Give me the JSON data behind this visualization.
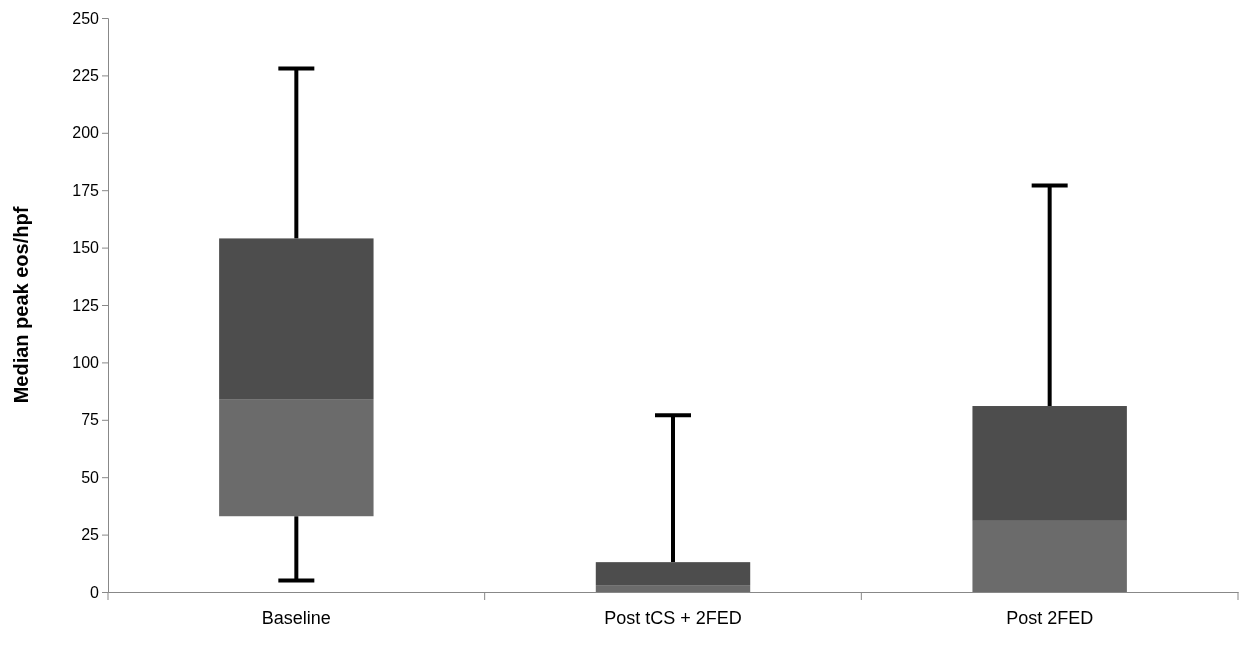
{
  "chart_data": {
    "type": "box",
    "ylabel": "Median peak eos/hpf",
    "categories": [
      "Baseline",
      "Post tCS + 2FED",
      "Post 2FED"
    ],
    "series": [
      {
        "color": "#6b6b6b",
        "boxes": [
          {
            "low": 5,
            "q1": 33,
            "median": 84,
            "q3": 154,
            "high": 228
          },
          {
            "low": 0,
            "q1": 0,
            "median": 3,
            "q3": 13,
            "high": 77
          },
          {
            "low": 0,
            "q1": 0,
            "median": 31,
            "q3": 81,
            "high": 177
          }
        ]
      }
    ],
    "ylim": [
      0,
      250
    ],
    "yticks": [
      0,
      25,
      50,
      75,
      100,
      125,
      150,
      175,
      200,
      225,
      250
    ],
    "grid": false
  }
}
